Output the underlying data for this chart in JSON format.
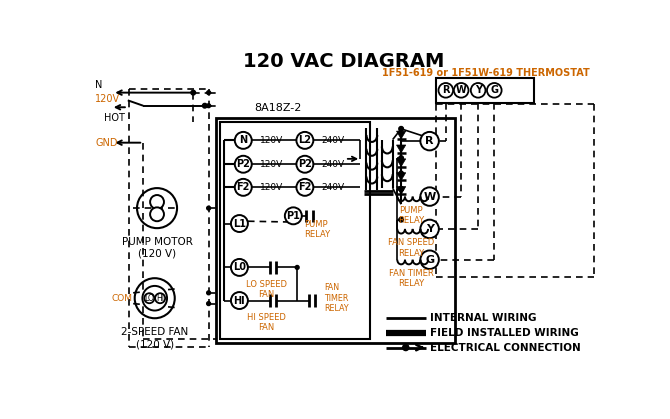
{
  "title": "120 VAC DIAGRAM",
  "thermostat_label": "1F51-619 or 1F51W-619 THERMOSTAT",
  "control_box_label": "8A18Z-2",
  "thermostat_terminals": [
    "R",
    "W",
    "Y",
    "G"
  ],
  "left_terminal_labels": [
    "N",
    "P2",
    "F2"
  ],
  "right_terminal_labels": [
    "L2",
    "P2",
    "F2"
  ],
  "voltage_left": [
    "120V",
    "120V",
    "120V"
  ],
  "voltage_right": [
    "240V",
    "240V",
    "240V"
  ],
  "relay_right_labels": [
    "R",
    "W",
    "Y",
    "G"
  ],
  "relay_names_right": [
    "PUMP\nRELAY",
    "FAN SPEED\nRELAY",
    "FAN TIMER\nRELAY"
  ],
  "pump_motor_label": "PUMP MOTOR\n(120 V)",
  "fan_label": "2-SPEED FAN\n(120 V)",
  "legend": [
    "INTERNAL WIRING",
    "FIELD INSTALLED WIRING",
    "ELECTRICAL CONNECTION"
  ],
  "orange": "#cc6600",
  "black": "#000000",
  "white": "#ffffff"
}
